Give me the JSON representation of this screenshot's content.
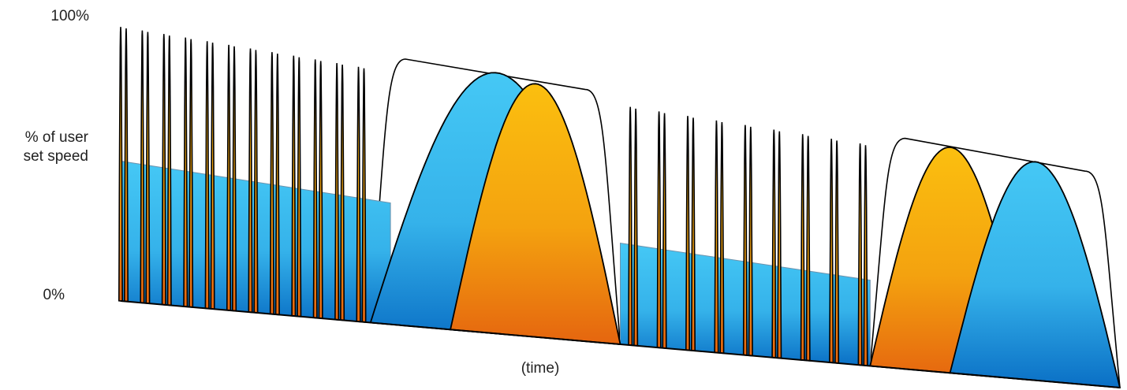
{
  "chart_data": {
    "type": "area",
    "title": "",
    "ylabel": "% of user set speed",
    "ylabel_line1": "% of user",
    "ylabel_line2": "set speed",
    "xlabel": "(time)",
    "y_ticks": [
      "100%",
      "0%"
    ],
    "ylim": [
      0,
      100
    ],
    "grid": false,
    "legend": "none",
    "colors": {
      "blue_top": "#45c8f5",
      "blue_bottom": "#0a6fc5",
      "orange_top": "#fbbf0f",
      "orange_bottom": "#e5650f",
      "outline": "#000000",
      "envelope": "#ffffff"
    },
    "plateaus": [
      {
        "series": "blue",
        "x_start": 0.0,
        "x_end": 0.27,
        "level_start": 50,
        "level_end": 42
      },
      {
        "series": "blue",
        "x_start": 0.5,
        "x_end": 0.75,
        "level_start": 34,
        "level_end": 28
      }
    ],
    "arches": [
      {
        "series": "blue",
        "x_start": 0.25,
        "x_end": 0.5,
        "peak": 89
      },
      {
        "series": "orange",
        "x_start": 0.33,
        "x_end": 0.5,
        "peak": 86
      },
      {
        "series": "orange",
        "x_start": 0.75,
        "x_end": 0.91,
        "peak": 73
      },
      {
        "series": "blue",
        "x_start": 0.83,
        "x_end": 1.0,
        "peak": 70
      }
    ],
    "envelopes": [
      {
        "x_start": 0.25,
        "x_end": 0.5,
        "level_start": 92,
        "level_end": 85
      },
      {
        "x_start": 0.75,
        "x_end": 1.0,
        "level_start": 75,
        "level_end": 68
      }
    ],
    "spike_groups": [
      {
        "x_start": 0.0,
        "x_end": 0.238,
        "peak_start": 98,
        "peak_end": 88,
        "count": 24
      },
      {
        "x_start": 0.51,
        "x_end": 0.74,
        "peak_start": 80,
        "peak_end": 72,
        "count": 18
      }
    ]
  }
}
